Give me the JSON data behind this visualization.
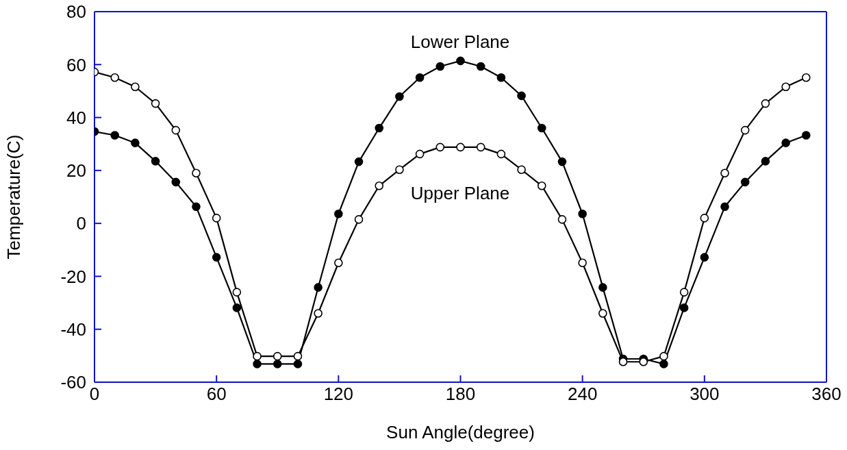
{
  "chart_data": {
    "type": "line",
    "xlabel": "Sun Angle(degree)",
    "ylabel": "Temperature(C)",
    "x": [
      0,
      10,
      20,
      30,
      40,
      50,
      60,
      70,
      80,
      90,
      100,
      110,
      120,
      130,
      140,
      150,
      160,
      170,
      180,
      190,
      200,
      210,
      220,
      230,
      240,
      250,
      260,
      270,
      280,
      290,
      300,
      310,
      320,
      330,
      340,
      350
    ],
    "series": [
      {
        "color": "#000000",
        "values": [
          34.7,
          33.3,
          30.4,
          23.5,
          15.6,
          6.3,
          -12.8,
          -31.9,
          -53.1,
          -53.1,
          -53.1,
          -24.2,
          3.6,
          23.3,
          36,
          47.9,
          55.1,
          59.3,
          61.4,
          59.3,
          55.1,
          48.2,
          36,
          23.3,
          3.6,
          -24.2,
          -51.2,
          -51.2,
          -53.1,
          -31.9,
          -12.8,
          6.3,
          15.6,
          23.5,
          30.4,
          33.3
        ]
      },
      {
        "color": "#000000",
        "values": [
          57.2,
          55.1,
          51.6,
          45.3,
          35.2,
          19,
          2,
          -26,
          -50.2,
          -50.2,
          -50.2,
          -34,
          -14.9,
          1.5,
          14.2,
          20.3,
          26.2,
          28.8,
          28.8,
          28.8,
          26.2,
          20.3,
          14.2,
          1.5,
          -14.9,
          -34,
          -52.3,
          -52.3,
          -50.2,
          -26,
          2,
          19,
          35.2,
          45.3,
          51.6,
          55.1
        ]
      }
    ],
    "xlim": [
      0,
      360
    ],
    "xticks": [
      0,
      60,
      120,
      180,
      240,
      300,
      360
    ],
    "ylim": [
      -60,
      80
    ],
    "yticks": [
      -60,
      -40,
      -20,
      0,
      20,
      40,
      60,
      80
    ],
    "annotations": [
      "Lower Plane",
      "Upper Plane"
    ],
    "marker": "circle",
    "line_style": "solid"
  }
}
